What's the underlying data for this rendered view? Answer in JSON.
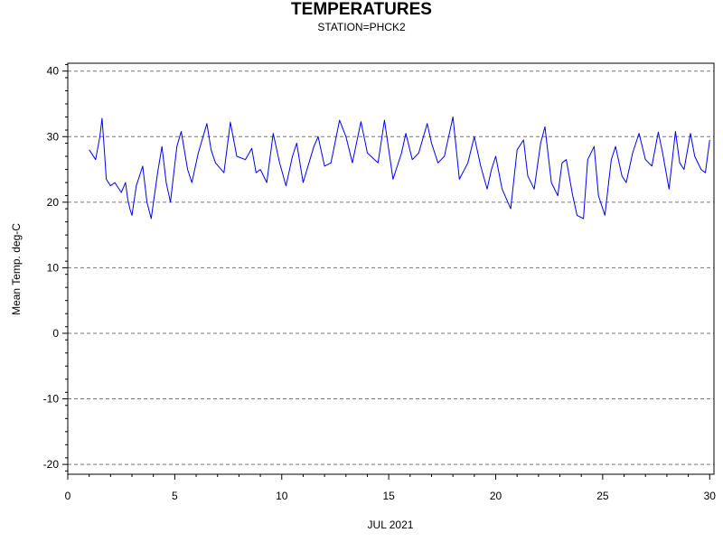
{
  "chart_data": {
    "type": "line",
    "title": "TEMPERATURES",
    "subtitle": "STATION=PHCK2",
    "xlabel": "JUL 2021",
    "ylabel": "Mean Temp. deg-C",
    "xlim": [
      0,
      30.2
    ],
    "ylim": [
      -21.5,
      41.2
    ],
    "xticks": [
      0,
      5,
      10,
      15,
      20,
      25,
      30
    ],
    "yticks": [
      -20,
      -10,
      0,
      10,
      20,
      30,
      40
    ],
    "grid": "horizontal dashed",
    "series": [
      {
        "color": "#0000ff",
        "x": [
          1.0,
          1.3,
          1.5,
          1.6,
          1.7,
          1.8,
          2.0,
          2.2,
          2.5,
          2.7,
          2.8,
          2.9,
          3.0,
          3.2,
          3.5,
          3.7,
          3.9,
          4.2,
          4.4,
          4.6,
          4.8,
          5.1,
          5.3,
          5.6,
          5.8,
          6.1,
          6.5,
          6.7,
          6.9,
          7.3,
          7.6,
          7.9,
          8.3,
          8.6,
          8.8,
          9.0,
          9.3,
          9.6,
          9.9,
          10.2,
          10.5,
          10.7,
          11.0,
          11.5,
          11.7,
          12.0,
          12.3,
          12.7,
          13.0,
          13.3,
          13.7,
          14.0,
          14.5,
          14.8,
          15.2,
          15.6,
          15.8,
          16.1,
          16.4,
          16.8,
          17.0,
          17.3,
          17.6,
          18.0,
          18.3,
          18.7,
          19.0,
          19.3,
          19.6,
          19.8,
          20.0,
          20.3,
          20.7,
          21.0,
          21.3,
          21.5,
          21.8,
          22.1,
          22.3,
          22.6,
          22.9,
          23.1,
          23.3,
          23.6,
          23.8,
          24.1,
          24.3,
          24.6,
          24.8,
          25.1,
          25.4,
          25.6,
          25.9,
          26.1,
          26.4,
          26.7,
          27.0,
          27.3,
          27.6,
          27.8,
          28.1,
          28.4,
          28.6,
          28.8,
          29.1,
          29.3,
          29.6,
          29.8,
          30.0
        ],
        "y": [
          28.0,
          26.5,
          30.0,
          32.8,
          28.5,
          23.5,
          22.5,
          23.0,
          21.5,
          23.0,
          20.5,
          19.0,
          18.0,
          22.5,
          25.5,
          20.0,
          17.5,
          24.5,
          28.5,
          23.0,
          20.0,
          28.5,
          30.8,
          25.0,
          23.0,
          27.5,
          32.0,
          28.0,
          26.0,
          24.5,
          32.2,
          27.0,
          26.5,
          28.2,
          24.5,
          25.0,
          23.0,
          30.5,
          26.0,
          22.5,
          27.0,
          29.0,
          23.0,
          28.5,
          30.0,
          25.5,
          26.0,
          32.5,
          30.0,
          26.0,
          32.3,
          27.5,
          26.0,
          32.5,
          23.5,
          27.5,
          30.5,
          26.5,
          27.5,
          32.0,
          29.0,
          26.0,
          27.0,
          33.0,
          23.5,
          26.0,
          30.0,
          25.5,
          22.0,
          25.0,
          27.0,
          22.0,
          19.0,
          28.0,
          29.5,
          24.0,
          22.0,
          29.0,
          31.5,
          23.0,
          21.0,
          26.0,
          26.5,
          21.0,
          18.0,
          17.5,
          26.5,
          28.5,
          21.0,
          18.0,
          26.5,
          28.5,
          24.0,
          23.0,
          27.5,
          30.5,
          26.5,
          25.5,
          30.7,
          27.5,
          22.0,
          30.8,
          26.0,
          25.0,
          30.5,
          27.0,
          25.0,
          24.5,
          29.5
        ]
      }
    ]
  }
}
